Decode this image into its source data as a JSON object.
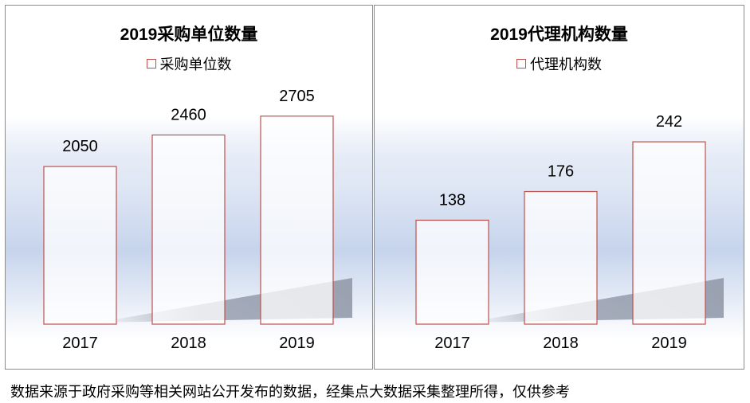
{
  "chart_data": [
    {
      "type": "bar",
      "title": "2019采购单位数量",
      "categories": [
        "2017",
        "2018",
        "2019"
      ],
      "series": [
        {
          "name": "采购单位数",
          "values": [
            2050,
            2460,
            2705
          ]
        }
      ],
      "data_labels": [
        "2050",
        "2460",
        "2705"
      ],
      "legend": "top-center",
      "grid": false,
      "ylim": [
        0,
        2900
      ]
    },
    {
      "type": "bar",
      "title": "2019代理机构数量",
      "categories": [
        "2017",
        "2018",
        "2019"
      ],
      "series": [
        {
          "name": "代理机构数",
          "values": [
            138,
            176,
            242
          ]
        }
      ],
      "data_labels": [
        "138",
        "176",
        "242"
      ],
      "legend": "top-center",
      "grid": false,
      "ylim": [
        0,
        296
      ]
    }
  ],
  "colors": {
    "bar_border": "#c0504d",
    "panel_border": "#8c8c8c",
    "background_band": "#c6d4ec"
  },
  "footnote": "数据来源于政府采购等相关网站公开发布的数据，经集点大数据采集整理所得，仅供参考"
}
